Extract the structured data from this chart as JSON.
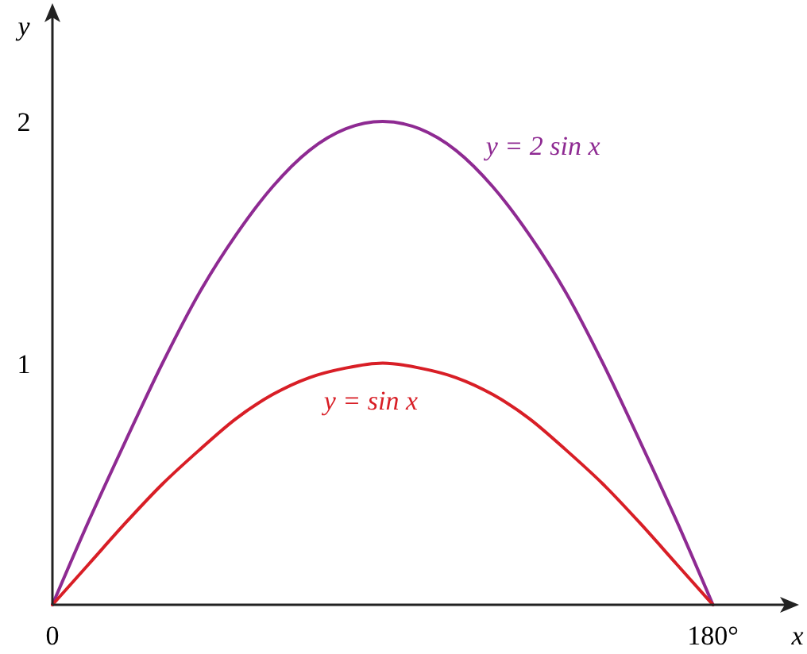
{
  "chart_data": {
    "type": "line",
    "xlabel": "x",
    "ylabel": "y",
    "x": [
      0,
      10,
      20,
      30,
      40,
      50,
      60,
      70,
      80,
      90,
      100,
      110,
      120,
      130,
      140,
      150,
      160,
      170,
      180
    ],
    "series": [
      {
        "name": "y = 2 sin x",
        "color": "#8e2a92",
        "values": [
          0,
          0.35,
          0.68,
          1,
          1.29,
          1.53,
          1.73,
          1.88,
          1.97,
          2,
          1.97,
          1.88,
          1.73,
          1.53,
          1.29,
          1,
          0.68,
          0.35,
          0
        ]
      },
      {
        "name": "y = sin x",
        "color": "#d81e26",
        "values": [
          0,
          0.17,
          0.34,
          0.5,
          0.64,
          0.77,
          0.87,
          0.94,
          0.98,
          1,
          0.98,
          0.94,
          0.87,
          0.77,
          0.64,
          0.5,
          0.34,
          0.17,
          0
        ]
      }
    ],
    "xlim": [
      0,
      200
    ],
    "ylim": [
      0,
      2.45
    ],
    "xticks": [
      0,
      {
        "value": 180,
        "label": "180°"
      }
    ],
    "yticks": [
      1,
      2
    ],
    "marker": "none",
    "line_style": "solid"
  }
}
